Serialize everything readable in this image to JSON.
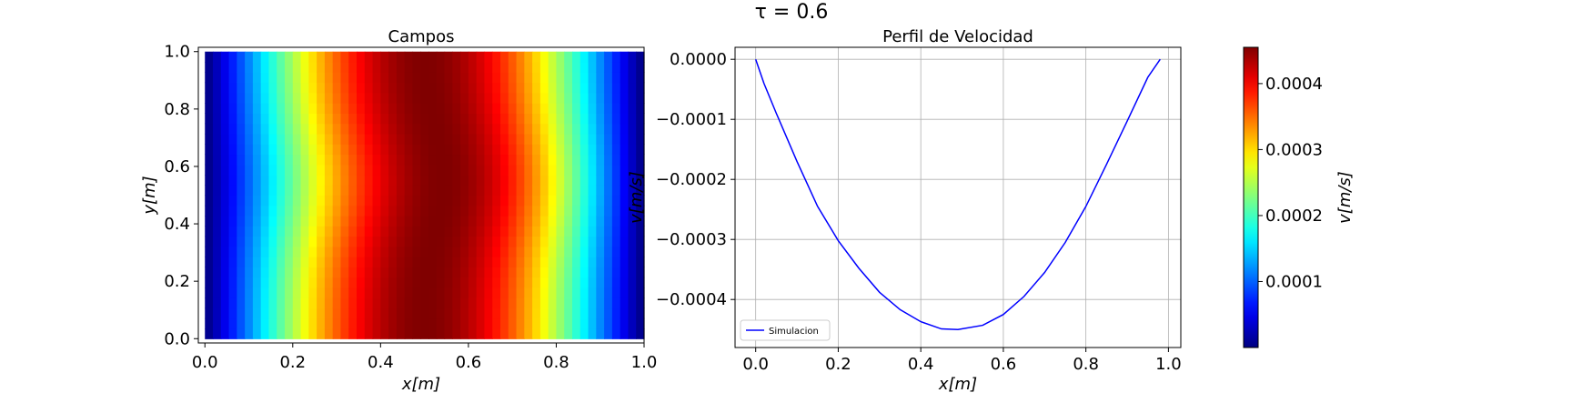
{
  "figure": {
    "suptitle": "τ = 0.6"
  },
  "chart_data": [
    {
      "type": "heatmap",
      "title": "Campos",
      "xlabel": "x[m]",
      "ylabel": "y[m]",
      "xlim": [
        -0.015,
        1.0
      ],
      "ylim": [
        -0.015,
        1.015
      ],
      "xticks": [
        0.0,
        0.2,
        0.4,
        0.6,
        0.8,
        1.0
      ],
      "yticks": [
        0.0,
        0.2,
        0.4,
        0.6,
        0.8,
        1.0
      ],
      "xtick_labels": [
        "0.0",
        "0.2",
        "0.4",
        "0.6",
        "0.8",
        "1.0"
      ],
      "ytick_labels": [
        "0.0",
        "0.2",
        "0.4",
        "0.6",
        "0.8",
        "1.0"
      ],
      "colormap": "jet",
      "value_range": [
        0.0,
        0.000455
      ],
      "field": "v(x,y) ≈ 4·vmax·x·(1−x); peak near x≈0.47, slight bulge near y≈0.5",
      "grid": false
    },
    {
      "type": "line",
      "title": "Perfil de Velocidad",
      "xlabel": "x[m]",
      "ylabel": "v[m/s]",
      "xlim": [
        -0.05,
        1.03
      ],
      "ylim": [
        -0.00048,
        2e-05
      ],
      "xticks": [
        0.0,
        0.2,
        0.4,
        0.6,
        0.8,
        1.0
      ],
      "yticks": [
        0.0,
        -0.0001,
        -0.0002,
        -0.0003,
        -0.0004
      ],
      "xtick_labels": [
        "0.0",
        "0.2",
        "0.4",
        "0.6",
        "0.8",
        "1.0"
      ],
      "ytick_labels": [
        "0.0000",
        "−0.0001",
        "−0.0002",
        "−0.0003",
        "−0.0004"
      ],
      "grid": true,
      "legend_position": "lower-left",
      "series": [
        {
          "name": "Simulacion",
          "color": "#0000ff",
          "x": [
            0.0,
            0.02,
            0.05,
            0.1,
            0.15,
            0.2,
            0.25,
            0.3,
            0.35,
            0.4,
            0.45,
            0.49,
            0.55,
            0.6,
            0.65,
            0.7,
            0.75,
            0.8,
            0.85,
            0.9,
            0.95,
            0.98
          ],
          "y": [
            0.0,
            -4e-05,
            -9e-05,
            -0.00017,
            -0.000245,
            -0.000302,
            -0.000348,
            -0.000388,
            -0.000417,
            -0.000437,
            -0.000449,
            -0.00045,
            -0.000443,
            -0.000425,
            -0.000395,
            -0.000355,
            -0.000305,
            -0.000245,
            -0.000175,
            -0.000103,
            -3e-05,
            0.0
          ]
        }
      ]
    },
    {
      "type": "colorbar",
      "label": "v[m/s]",
      "colormap": "jet",
      "range": [
        0.0,
        0.000455
      ],
      "ticks": [
        0.0001,
        0.0002,
        0.0003,
        0.0004
      ],
      "tick_labels": [
        "0.0001",
        "0.0002",
        "0.0003",
        "0.0004"
      ]
    }
  ]
}
